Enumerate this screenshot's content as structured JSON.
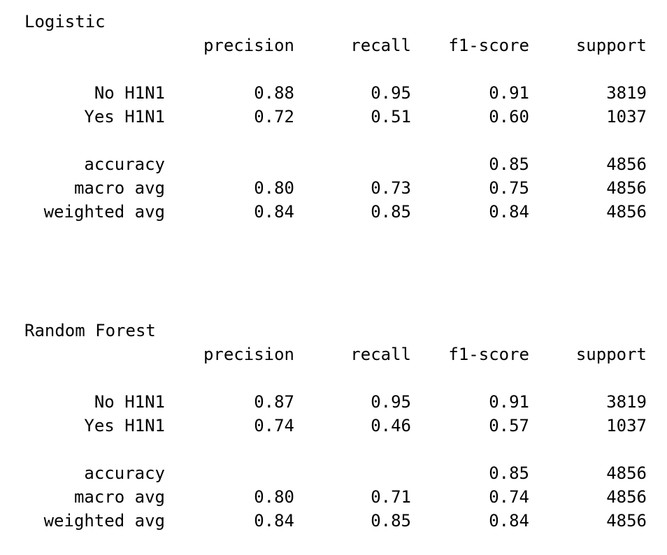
{
  "reports": [
    {
      "title": "Logistic",
      "headers": {
        "precision": "precision",
        "recall": "recall",
        "f1": "f1-score",
        "support": "support"
      },
      "class_rows": [
        {
          "label": "No H1N1",
          "precision": "0.88",
          "recall": "0.95",
          "f1": "0.91",
          "support": "3819"
        },
        {
          "label": "Yes H1N1",
          "precision": "0.72",
          "recall": "0.51",
          "f1": "0.60",
          "support": "1037"
        }
      ],
      "accuracy_row": {
        "label": "accuracy",
        "f1": "0.85",
        "support": "4856"
      },
      "avg_rows": [
        {
          "label": "macro avg",
          "precision": "0.80",
          "recall": "0.73",
          "f1": "0.75",
          "support": "4856"
        },
        {
          "label": "weighted avg",
          "precision": "0.84",
          "recall": "0.85",
          "f1": "0.84",
          "support": "4856"
        }
      ]
    },
    {
      "title": "Random Forest",
      "headers": {
        "precision": "precision",
        "recall": "recall",
        "f1": "f1-score",
        "support": "support"
      },
      "class_rows": [
        {
          "label": "No H1N1",
          "precision": "0.87",
          "recall": "0.95",
          "f1": "0.91",
          "support": "3819"
        },
        {
          "label": "Yes H1N1",
          "precision": "0.74",
          "recall": "0.46",
          "f1": "0.57",
          "support": "1037"
        }
      ],
      "accuracy_row": {
        "label": "accuracy",
        "f1": "0.85",
        "support": "4856"
      },
      "avg_rows": [
        {
          "label": "macro avg",
          "precision": "0.80",
          "recall": "0.71",
          "f1": "0.74",
          "support": "4856"
        },
        {
          "label": "weighted avg",
          "precision": "0.84",
          "recall": "0.85",
          "f1": "0.84",
          "support": "4856"
        }
      ]
    }
  ]
}
